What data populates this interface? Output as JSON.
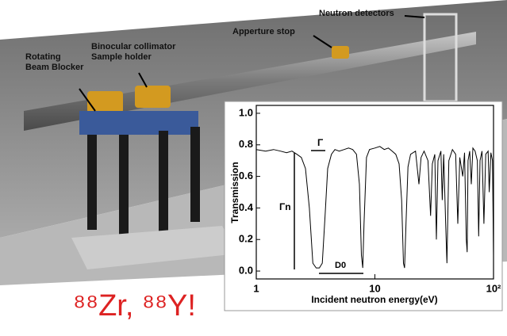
{
  "labels": {
    "beam_blocker": [
      "Rotating",
      "Beam Blocker"
    ],
    "collimator": [
      "Binocular collimator",
      "Sample holder"
    ],
    "aperture": "Apperture stop",
    "detectors": "Neutron detectors"
  },
  "caption": "⁸⁸Zr, ⁸⁸Y!",
  "chart_data": {
    "type": "line",
    "xlabel": "Incident neutron energy(eV)",
    "ylabel": "Transmission",
    "log_x": true,
    "color": "#000000",
    "xlim": [
      1,
      100
    ],
    "xticks": [
      1,
      10,
      {
        "value": 100,
        "label": "10²"
      }
    ],
    "ylim": [
      -0.05,
      1.05
    ],
    "yticks": [
      {
        "value": 0,
        "label": "0.0"
      },
      0.2,
      0.4,
      0.6,
      0.8,
      {
        "value": 1,
        "label": "1.0"
      }
    ],
    "annotations": [
      "Γ",
      "Γn",
      "D0"
    ],
    "x": [
      1,
      1.2,
      1.4,
      1.6,
      1.8,
      2.0,
      2.2,
      2.4,
      2.6,
      2.8,
      3.0,
      3.2,
      3.4,
      3.6,
      3.8,
      4.0,
      4.3,
      4.6,
      5,
      5.5,
      6,
      6.5,
      7,
      7.4,
      7.7,
      7.9,
      8.1,
      8.5,
      9,
      10,
      11,
      12,
      13,
      14,
      15,
      16,
      16.8,
      17.4,
      17.8,
      18.3,
      19,
      20,
      22,
      23.5,
      24.5,
      26,
      28,
      29.5,
      30.5,
      32,
      33,
      34,
      36,
      37,
      38,
      39.5,
      40.5,
      42,
      45,
      48,
      50,
      52,
      55,
      57,
      59,
      60,
      61,
      63,
      65,
      67,
      70,
      73,
      75,
      77,
      80,
      83,
      86,
      90,
      92,
      95,
      98,
      100
    ],
    "values": [
      0.77,
      0.76,
      0.77,
      0.76,
      0.75,
      0.76,
      0.74,
      0.72,
      0.65,
      0.4,
      0.05,
      0.02,
      0.02,
      0.05,
      0.35,
      0.65,
      0.74,
      0.77,
      0.76,
      0.77,
      0.78,
      0.77,
      0.74,
      0.55,
      0.1,
      0.02,
      0.3,
      0.72,
      0.77,
      0.78,
      0.79,
      0.77,
      0.78,
      0.76,
      0.74,
      0.68,
      0.45,
      0.05,
      0.02,
      0.3,
      0.66,
      0.74,
      0.76,
      0.55,
      0.72,
      0.76,
      0.7,
      0.35,
      0.68,
      0.74,
      0.2,
      0.7,
      0.76,
      0.45,
      0.74,
      0.3,
      0.05,
      0.7,
      0.77,
      0.74,
      0.3,
      0.72,
      0.6,
      0.75,
      0.2,
      0.12,
      0.7,
      0.76,
      0.55,
      0.78,
      0.76,
      0.7,
      0.22,
      0.7,
      0.76,
      0.3,
      0.74,
      0.76,
      0.5,
      0.75,
      0.7,
      0.1
    ]
  }
}
